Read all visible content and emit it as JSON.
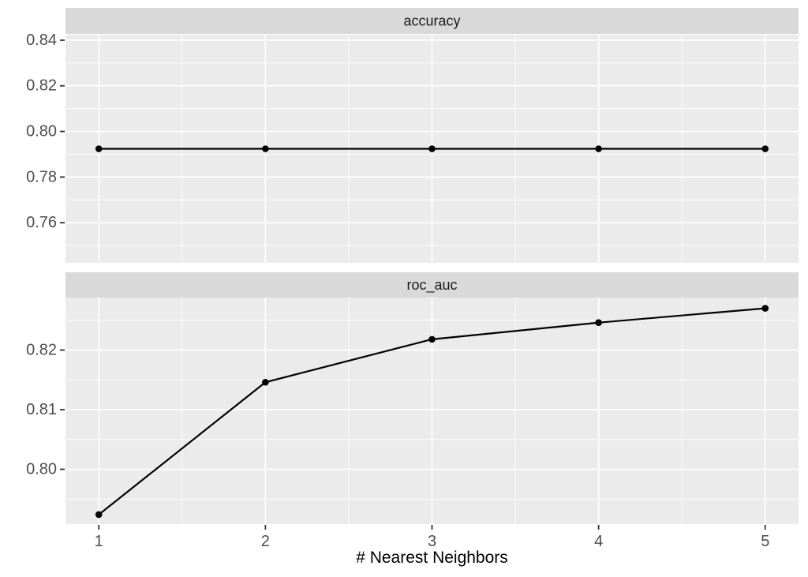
{
  "colors": {
    "figure_bg": "#ffffff",
    "panel_bg": "#ebebeb",
    "strip_bg": "#d9d9d9",
    "grid": "#ffffff",
    "line": "#000000",
    "point": "#000000",
    "tick_mark": "#333333",
    "axis_text": "#4d4d4d",
    "strip_text": "#1a1a1a",
    "axis_title": "#000000"
  },
  "chart_data": {
    "type": "line",
    "faceting": "rows-free-y",
    "title": "",
    "x_label": "# Nearest Neighbors",
    "y_label": "",
    "grid": true,
    "legend": "none",
    "x": [
      1,
      2,
      3,
      4,
      5
    ],
    "xlim": [
      0.8,
      5.2
    ],
    "xticks": [
      1,
      2,
      3,
      4,
      5
    ],
    "xtick_labels": [
      "1",
      "2",
      "3",
      "4",
      "5"
    ],
    "x_minor": [
      1.5,
      2.5,
      3.5,
      4.5
    ],
    "facets": [
      {
        "title": "accuracy",
        "x": [
          1,
          2,
          3,
          4,
          5
        ],
        "values": [
          0.7924,
          0.7924,
          0.7924,
          0.7924,
          0.7924
        ],
        "ylim": [
          0.7424,
          0.8424
        ],
        "yticks": [
          0.84,
          0.82,
          0.8,
          0.78,
          0.76
        ],
        "ytick_labels": [
          "0.84",
          "0.82",
          "0.80",
          "0.78",
          "0.76"
        ],
        "y_minor": [
          0.83,
          0.81,
          0.79,
          0.77,
          0.75
        ]
      },
      {
        "title": "roc_auc",
        "x": [
          1,
          2,
          3,
          4,
          5
        ],
        "values": [
          0.7924,
          0.8146,
          0.8218,
          0.8246,
          0.827
        ],
        "ylim": [
          0.7908,
          0.8288
        ],
        "yticks": [
          0.82,
          0.81,
          0.8
        ],
        "ytick_labels": [
          "0.82",
          "0.81",
          "0.80"
        ],
        "y_minor": [
          0.825,
          0.815,
          0.805,
          0.795
        ]
      }
    ]
  }
}
